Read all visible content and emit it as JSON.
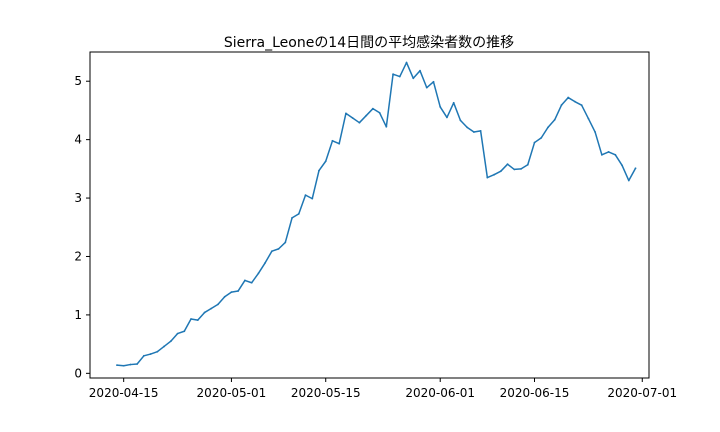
{
  "chart_data": {
    "type": "line",
    "title": "Sierra_Leoneの14日間の平均感染者数の推移",
    "xlabel": "",
    "ylabel": "",
    "x_axis_type": "date",
    "xlim": [
      "2020-04-10",
      "2020-07-02"
    ],
    "ylim": [
      -0.08,
      5.5
    ],
    "grid": false,
    "x_ticks": [
      "2020-04-15",
      "2020-05-01",
      "2020-05-15",
      "2020-06-01",
      "2020-06-15",
      "2020-07-01"
    ],
    "y_ticks": [
      0,
      1,
      2,
      3,
      4,
      5
    ],
    "series": [
      {
        "name": "",
        "color": "#1f77b4",
        "points": [
          [
            "2020-04-14",
            0.14
          ],
          [
            "2020-04-15",
            0.13
          ],
          [
            "2020-04-16",
            0.15
          ],
          [
            "2020-04-17",
            0.16
          ],
          [
            "2020-04-18",
            0.3
          ],
          [
            "2020-04-19",
            0.33
          ],
          [
            "2020-04-20",
            0.37
          ],
          [
            "2020-04-21",
            0.46
          ],
          [
            "2020-04-22",
            0.55
          ],
          [
            "2020-04-23",
            0.68
          ],
          [
            "2020-04-24",
            0.72
          ],
          [
            "2020-04-25",
            0.93
          ],
          [
            "2020-04-26",
            0.91
          ],
          [
            "2020-04-27",
            1.04
          ],
          [
            "2020-04-28",
            1.11
          ],
          [
            "2020-04-29",
            1.18
          ],
          [
            "2020-04-30",
            1.31
          ],
          [
            "2020-05-01",
            1.39
          ],
          [
            "2020-05-02",
            1.41
          ],
          [
            "2020-05-03",
            1.59
          ],
          [
            "2020-05-04",
            1.55
          ],
          [
            "2020-05-05",
            1.71
          ],
          [
            "2020-05-06",
            1.89
          ],
          [
            "2020-05-07",
            2.09
          ],
          [
            "2020-05-08",
            2.13
          ],
          [
            "2020-05-09",
            2.24
          ],
          [
            "2020-05-10",
            2.66
          ],
          [
            "2020-05-11",
            2.73
          ],
          [
            "2020-05-12",
            3.05
          ],
          [
            "2020-05-13",
            2.99
          ],
          [
            "2020-05-14",
            3.47
          ],
          [
            "2020-05-15",
            3.63
          ],
          [
            "2020-05-16",
            3.98
          ],
          [
            "2020-05-17",
            3.93
          ],
          [
            "2020-05-18",
            4.45
          ],
          [
            "2020-05-19",
            4.37
          ],
          [
            "2020-05-20",
            4.29
          ],
          [
            "2020-05-21",
            4.41
          ],
          [
            "2020-05-22",
            4.53
          ],
          [
            "2020-05-23",
            4.46
          ],
          [
            "2020-05-24",
            4.22
          ],
          [
            "2020-05-25",
            5.12
          ],
          [
            "2020-05-26",
            5.08
          ],
          [
            "2020-05-27",
            5.32
          ],
          [
            "2020-05-28",
            5.05
          ],
          [
            "2020-05-29",
            5.18
          ],
          [
            "2020-05-30",
            4.89
          ],
          [
            "2020-05-31",
            4.99
          ],
          [
            "2020-06-01",
            4.56
          ],
          [
            "2020-06-02",
            4.38
          ],
          [
            "2020-06-03",
            4.63
          ],
          [
            "2020-06-04",
            4.33
          ],
          [
            "2020-06-05",
            4.21
          ],
          [
            "2020-06-06",
            4.13
          ],
          [
            "2020-06-07",
            4.15
          ],
          [
            "2020-06-08",
            3.35
          ],
          [
            "2020-06-09",
            3.4
          ],
          [
            "2020-06-10",
            3.46
          ],
          [
            "2020-06-11",
            3.58
          ],
          [
            "2020-06-12",
            3.49
          ],
          [
            "2020-06-13",
            3.5
          ],
          [
            "2020-06-14",
            3.57
          ],
          [
            "2020-06-15",
            3.95
          ],
          [
            "2020-06-16",
            4.03
          ],
          [
            "2020-06-17",
            4.21
          ],
          [
            "2020-06-18",
            4.34
          ],
          [
            "2020-06-19",
            4.59
          ],
          [
            "2020-06-20",
            4.72
          ],
          [
            "2020-06-21",
            4.65
          ],
          [
            "2020-06-22",
            4.59
          ],
          [
            "2020-06-23",
            4.36
          ],
          [
            "2020-06-24",
            4.13
          ],
          [
            "2020-06-25",
            3.74
          ],
          [
            "2020-06-26",
            3.79
          ],
          [
            "2020-06-27",
            3.74
          ],
          [
            "2020-06-28",
            3.56
          ],
          [
            "2020-06-29",
            3.3
          ],
          [
            "2020-06-30",
            3.51
          ]
        ]
      }
    ]
  }
}
